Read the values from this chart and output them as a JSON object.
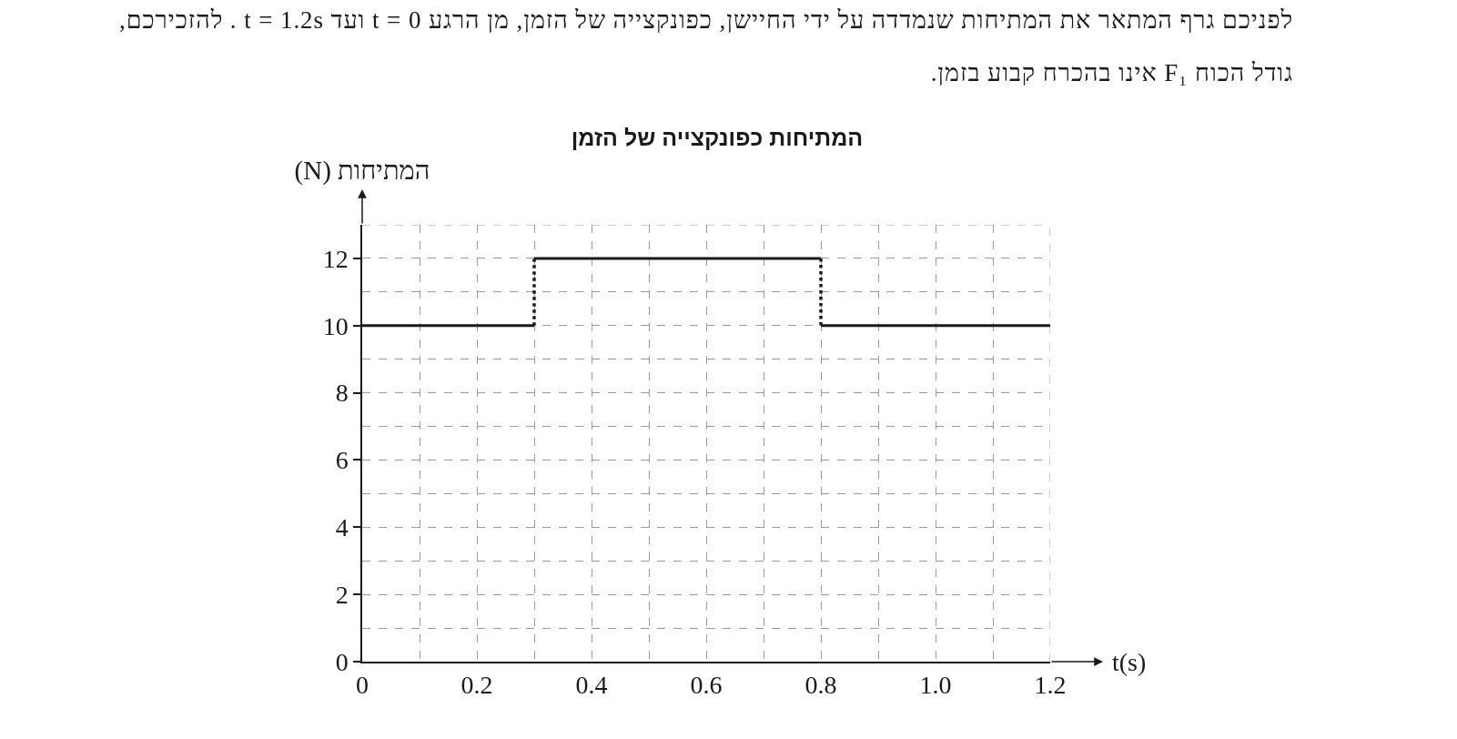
{
  "chart_data": {
    "type": "line",
    "title": "המתיחות כפונקצייה של הזמן",
    "ylabel": "המתיחות (N)",
    "xlabel": "t(s)",
    "annotations": [
      "לפניכם גרף המתאר את המתיחות שנמדדה על ידי החיישן, כפונקצייה של הזמן, מן הרגע t = 0 ועד t = 1.2s . להזכירכם,",
      "גודל הכוח F₁ אינו בהכרח קבוע בזמן."
    ],
    "series": [
      {
        "color": "#1a1a1a",
        "x": [
          0,
          0.3
        ],
        "values": [
          10,
          10
        ]
      },
      {
        "color": "#1a1a1a",
        "x": [
          0.3,
          0.8
        ],
        "values": [
          12,
          12
        ]
      },
      {
        "color": "#1a1a1a",
        "x": [
          0.8,
          1.2
        ],
        "values": [
          10,
          10
        ]
      },
      {
        "color": "#1a1a1a",
        "line_style": "dotted",
        "x": [
          0.3,
          0.3
        ],
        "values": [
          10,
          12
        ]
      },
      {
        "color": "#1a1a1a",
        "line_style": "dotted",
        "x": [
          0.8,
          0.8
        ],
        "values": [
          12,
          10
        ]
      }
    ],
    "xlim": [
      0,
      1.2
    ],
    "ylim": [
      0,
      13
    ],
    "xticks": [
      0,
      0.2,
      0.4,
      0.6,
      0.8,
      {
        "value": 1,
        "label": "1.0"
      },
      1.2
    ],
    "yticks": [
      0,
      2,
      4,
      6,
      8,
      10,
      12
    ],
    "grid": true,
    "line_style": "solid"
  }
}
